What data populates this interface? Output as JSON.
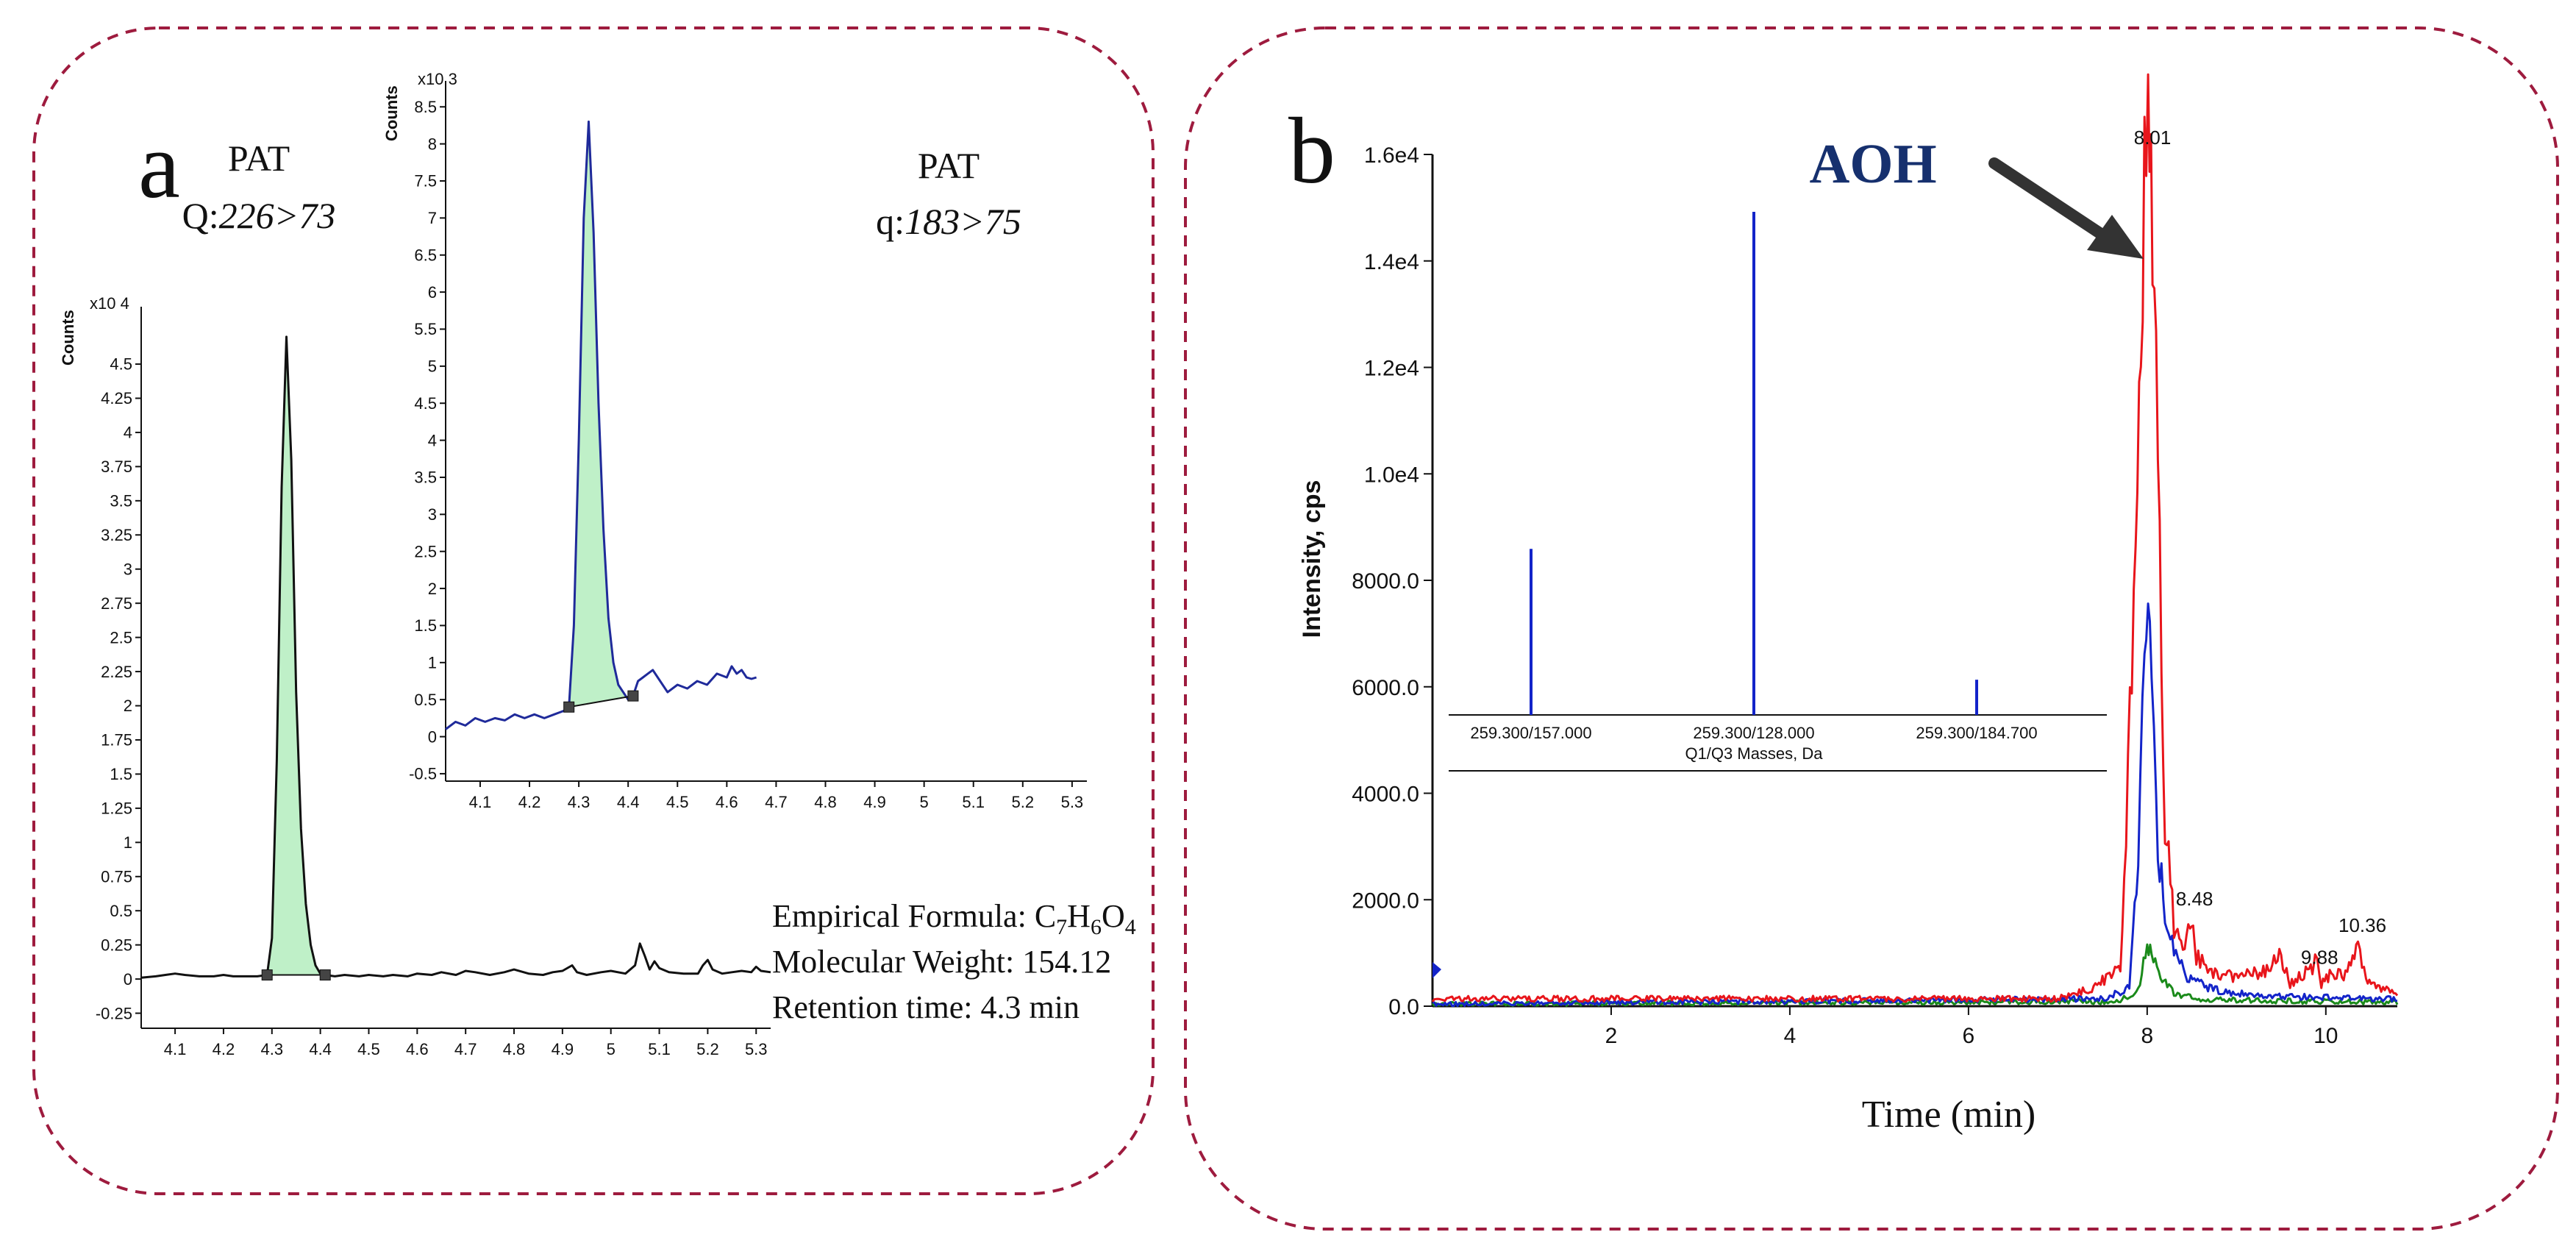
{
  "colors": {
    "border": "#9e1b3e",
    "black": "#111111",
    "navy": "#1f2a9a",
    "fill": "#bff0c8",
    "red": "#e8151b",
    "blue": "#1324c9",
    "green": "#1a8a1a",
    "label": "#16306e",
    "arrow": "#333333"
  },
  "panel_a": {
    "letter": "a",
    "q_label": "PAT",
    "q_prefix": "Q:",
    "q_transition": "226>73",
    "qual_label": "PAT",
    "qual_prefix": "q:",
    "qual_transition": "183>75",
    "info": {
      "formula_label": "Empirical Formula: ",
      "formula_parts": [
        "C",
        "7",
        "H",
        "6",
        "O",
        "4"
      ],
      "mw_label": "Molecular Weight: ",
      "mw_value": "154.12",
      "rt_label": "Retention time: ",
      "rt_value": "4.3 min"
    }
  },
  "panel_b": {
    "letter": "b",
    "analyte": "AOH"
  },
  "chart_data": [
    {
      "id": "quantifier",
      "type": "line",
      "title": "PAT Q:226>73",
      "ylabel": "Counts",
      "y_multiplier": "x10 4",
      "xlim": [
        4.03,
        5.33
      ],
      "ylim": [
        -0.36,
        4.92
      ],
      "x_ticks": [
        4.1,
        4.2,
        4.3,
        4.4,
        4.5,
        4.6,
        4.7,
        4.8,
        4.9,
        5,
        5.1,
        5.2,
        5.3
      ],
      "y_ticks": [
        -0.25,
        0,
        0.25,
        0.5,
        0.75,
        1,
        1.25,
        1.5,
        1.75,
        2,
        2.25,
        2.5,
        2.75,
        3,
        3.25,
        3.5,
        3.75,
        4,
        4.25,
        4.5
      ],
      "peak": {
        "apex_x": 4.33,
        "apex_y": 4.7,
        "start_x": 4.29,
        "end_x": 4.41,
        "fill": "integrated area"
      },
      "series": [
        {
          "name": "226>73",
          "x": [
            4.03,
            4.06,
            4.08,
            4.1,
            4.12,
            4.15,
            4.18,
            4.2,
            4.22,
            4.25,
            4.27,
            4.29,
            4.3,
            4.31,
            4.32,
            4.33,
            4.34,
            4.35,
            4.36,
            4.37,
            4.38,
            4.39,
            4.4,
            4.41,
            4.43,
            4.45,
            4.48,
            4.5,
            4.53,
            4.55,
            4.58,
            4.6,
            4.63,
            4.65,
            4.68,
            4.7,
            4.72,
            4.75,
            4.78,
            4.8,
            4.83,
            4.86,
            4.88,
            4.9,
            4.92,
            4.93,
            4.95,
            4.98,
            5.0,
            5.03,
            5.05,
            5.06,
            5.07,
            5.08,
            5.09,
            5.1,
            5.12,
            5.15,
            5.18,
            5.19,
            5.2,
            5.21,
            5.23,
            5.25,
            5.27,
            5.29,
            5.3,
            5.31,
            5.33
          ],
          "y": [
            0.01,
            0.02,
            0.03,
            0.04,
            0.03,
            0.02,
            0.02,
            0.03,
            0.02,
            0.02,
            0.02,
            0.03,
            0.3,
            1.6,
            3.6,
            4.7,
            3.8,
            2.1,
            1.1,
            0.55,
            0.25,
            0.1,
            0.04,
            0.03,
            0.02,
            0.03,
            0.02,
            0.03,
            0.02,
            0.03,
            0.02,
            0.04,
            0.03,
            0.05,
            0.03,
            0.06,
            0.05,
            0.03,
            0.05,
            0.07,
            0.04,
            0.03,
            0.05,
            0.06,
            0.1,
            0.05,
            0.03,
            0.05,
            0.06,
            0.04,
            0.1,
            0.26,
            0.17,
            0.07,
            0.13,
            0.08,
            0.05,
            0.04,
            0.04,
            0.1,
            0.14,
            0.07,
            0.04,
            0.05,
            0.06,
            0.05,
            0.09,
            0.06,
            0.05
          ]
        }
      ]
    },
    {
      "id": "qualifier",
      "type": "line",
      "title": "PAT q:183>75",
      "ylabel": "Counts",
      "y_multiplier": "x10 3",
      "xlim": [
        4.03,
        5.33
      ],
      "ylim": [
        -0.6,
        8.85
      ],
      "x_ticks": [
        4.1,
        4.2,
        4.3,
        4.4,
        4.5,
        4.6,
        4.7,
        4.8,
        4.9,
        5,
        5.1,
        5.2,
        5.3
      ],
      "y_ticks": [
        -0.5,
        0,
        0.5,
        1,
        1.5,
        2,
        2.5,
        3,
        3.5,
        4,
        4.5,
        5,
        5.5,
        6,
        6.5,
        7,
        7.5,
        8,
        8.5
      ],
      "peak": {
        "apex_x": 4.32,
        "apex_y": 8.3,
        "start_x": 4.28,
        "end_x": 4.41,
        "fill": "integrated area"
      },
      "series": [
        {
          "name": "183>75",
          "x": [
            4.03,
            4.05,
            4.07,
            4.09,
            4.11,
            4.13,
            4.15,
            4.17,
            4.19,
            4.21,
            4.23,
            4.25,
            4.27,
            4.28,
            4.29,
            4.3,
            4.31,
            4.32,
            4.33,
            4.34,
            4.35,
            4.36,
            4.37,
            4.38,
            4.39,
            4.4,
            4.41,
            4.42,
            4.43,
            4.44,
            4.45,
            4.46,
            4.48,
            4.5,
            4.52,
            4.54,
            4.56,
            4.58,
            4.6,
            4.61,
            4.62,
            4.63,
            4.64,
            4.65,
            4.66
          ],
          "y": [
            0.1,
            0.2,
            0.15,
            0.25,
            0.2,
            0.25,
            0.22,
            0.3,
            0.25,
            0.3,
            0.25,
            0.3,
            0.35,
            0.4,
            1.5,
            4.0,
            7.0,
            8.3,
            6.8,
            4.5,
            2.8,
            1.6,
            1.0,
            0.7,
            0.6,
            0.5,
            0.55,
            0.75,
            0.8,
            0.85,
            0.9,
            0.8,
            0.6,
            0.7,
            0.65,
            0.75,
            0.7,
            0.85,
            0.8,
            0.95,
            0.85,
            0.9,
            0.8,
            0.78,
            0.8
          ]
        }
      ]
    },
    {
      "id": "aoh_xic",
      "type": "line",
      "title": "AOH",
      "xlabel": "Time (min)",
      "ylabel": "Intensity, cps",
      "xlim": [
        0,
        10.8
      ],
      "ylim": [
        0,
        16000
      ],
      "x_ticks": [
        2,
        4,
        6,
        8,
        10
      ],
      "y_ticks": [
        0,
        2000,
        4000,
        6000,
        8000,
        10000,
        12000,
        14000,
        16000
      ],
      "y_tick_labels": [
        "0.0",
        "2000.0",
        "4000.0",
        "6000.0",
        "8000.0",
        "1.0e4",
        "1.2e4",
        "1.4e4",
        "1.6e4"
      ],
      "peak_labels": [
        {
          "x": 8.01,
          "y": 16000,
          "label": "8.01"
        },
        {
          "x": 8.48,
          "y": 1700,
          "label": "8.48"
        },
        {
          "x": 9.88,
          "y": 600,
          "label": "9.88"
        },
        {
          "x": 10.36,
          "y": 1200,
          "label": "10.36"
        }
      ],
      "series": [
        {
          "name": "red",
          "x": [
            0,
            7.0,
            7.4,
            7.7,
            7.85,
            7.95,
            8.01,
            8.06,
            8.12,
            8.2,
            8.3,
            8.4,
            8.48,
            8.55,
            8.7,
            9.0,
            9.3,
            9.5,
            9.6,
            9.7,
            9.85,
            9.88,
            9.95,
            10.1,
            10.2,
            10.3,
            10.36,
            10.45,
            10.6,
            10.8
          ],
          "y": [
            100,
            100,
            300,
            700,
            7000,
            14000,
            16000,
            15000,
            10000,
            3500,
            1500,
            1000,
            1600,
            900,
            600,
            500,
            600,
            900,
            400,
            500,
            700,
            1000,
            400,
            600,
            500,
            800,
            1200,
            400,
            300,
            200
          ]
        },
        {
          "name": "blue",
          "x": [
            0,
            7.5,
            7.8,
            7.9,
            7.97,
            8.01,
            8.05,
            8.1,
            8.2,
            8.3,
            8.45,
            8.7,
            9.2,
            10.8
          ],
          "y": [
            0,
            100,
            300,
            3000,
            6500,
            6800,
            6000,
            3500,
            1500,
            1000,
            500,
            300,
            150,
            100
          ]
        },
        {
          "name": "green",
          "x": [
            0,
            7.7,
            7.9,
            8.0,
            8.05,
            8.15,
            8.3,
            8.6,
            10.8
          ],
          "y": [
            0,
            50,
            300,
            1100,
            900,
            500,
            200,
            80,
            30
          ]
        }
      ]
    },
    {
      "id": "mrm_inset",
      "type": "bar",
      "xlabel": "Q1/Q3 Masses, Da",
      "categories": [
        "259.300/157.000",
        "259.300/128.000",
        "259.300/184.700"
      ],
      "values": [
        0.33,
        1.0,
        0.07
      ]
    }
  ]
}
